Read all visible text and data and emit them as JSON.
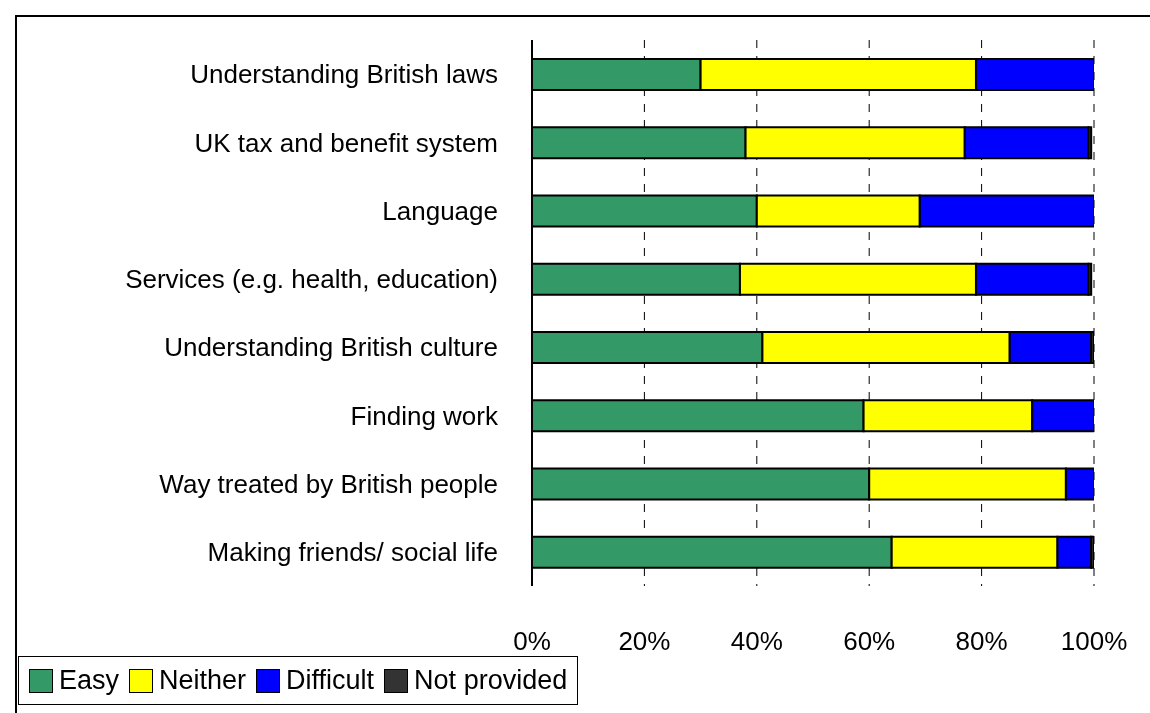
{
  "chart_data": {
    "type": "bar",
    "orientation": "horizontal",
    "stacked": true,
    "categories": [
      "Understanding British laws",
      "UK tax and benefit system",
      "Language",
      "Services (e.g. health, education)",
      "Understanding British culture",
      "Finding work",
      "Way treated by British people",
      "Making friends/ social life"
    ],
    "series": [
      {
        "name": "Easy",
        "color": "#339966",
        "values": [
          30,
          38,
          40,
          37,
          41,
          59,
          60,
          64
        ]
      },
      {
        "name": "Neither",
        "color": "#ffff00",
        "values": [
          49,
          39,
          29,
          42,
          44,
          30,
          35,
          29.5
        ]
      },
      {
        "name": "Difficult",
        "color": "#0000ff",
        "values": [
          21,
          22,
          31,
          20,
          14.5,
          11,
          5,
          6
        ]
      },
      {
        "name": "Not provided",
        "color": "#333333",
        "values": [
          0,
          0.5,
          0,
          0.5,
          0.5,
          0,
          0,
          0.5
        ]
      }
    ],
    "xlim": [
      0,
      100
    ],
    "xticks": [
      {
        "value": 0,
        "label": "0%"
      },
      {
        "value": 20,
        "label": "20%"
      },
      {
        "value": 40,
        "label": "40%"
      },
      {
        "value": 60,
        "label": "60%"
      },
      {
        "value": 80,
        "label": "80%"
      },
      {
        "value": 100,
        "label": "100%"
      }
    ],
    "grid": "x",
    "legend": "bottom"
  }
}
